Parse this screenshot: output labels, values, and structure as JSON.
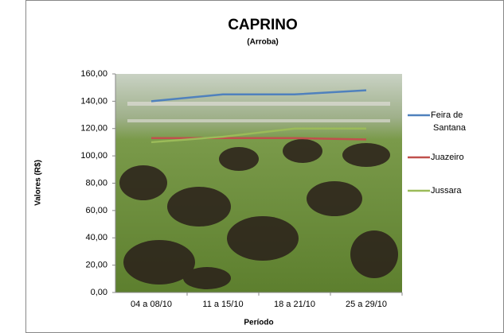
{
  "chart_data": {
    "type": "line",
    "title": "CAPRINO",
    "subtitle": "(Arroba)",
    "xlabel": "Período",
    "ylabel": "Valores (R$)",
    "categories": [
      "04 a 08/10",
      "11 a 15/10",
      "18 a 21/10",
      "25 a 29/10"
    ],
    "series": [
      {
        "name": "Feira de Santana",
        "color": "#4f81bd",
        "values": [
          140,
          145,
          145,
          148
        ]
      },
      {
        "name": "Juazeiro",
        "color": "#c0504d",
        "values": [
          113,
          113,
          113,
          112
        ]
      },
      {
        "name": "Jussara",
        "color": "#9bbb59",
        "values": [
          110,
          114,
          120,
          120
        ]
      }
    ],
    "ylim": [
      0,
      160
    ],
    "yticks": [
      {
        "value": 0,
        "label": "0,00"
      },
      {
        "value": 20,
        "label": "20,00"
      },
      {
        "value": 40,
        "label": "40,00"
      },
      {
        "value": 60,
        "label": "60,00"
      },
      {
        "value": 80,
        "label": "80,00"
      },
      {
        "value": 100,
        "label": "100,00"
      },
      {
        "value": 120,
        "label": "120,00"
      },
      {
        "value": 140,
        "label": "140,00"
      },
      {
        "value": 160,
        "label": "160,00"
      }
    ],
    "legend": "right"
  }
}
